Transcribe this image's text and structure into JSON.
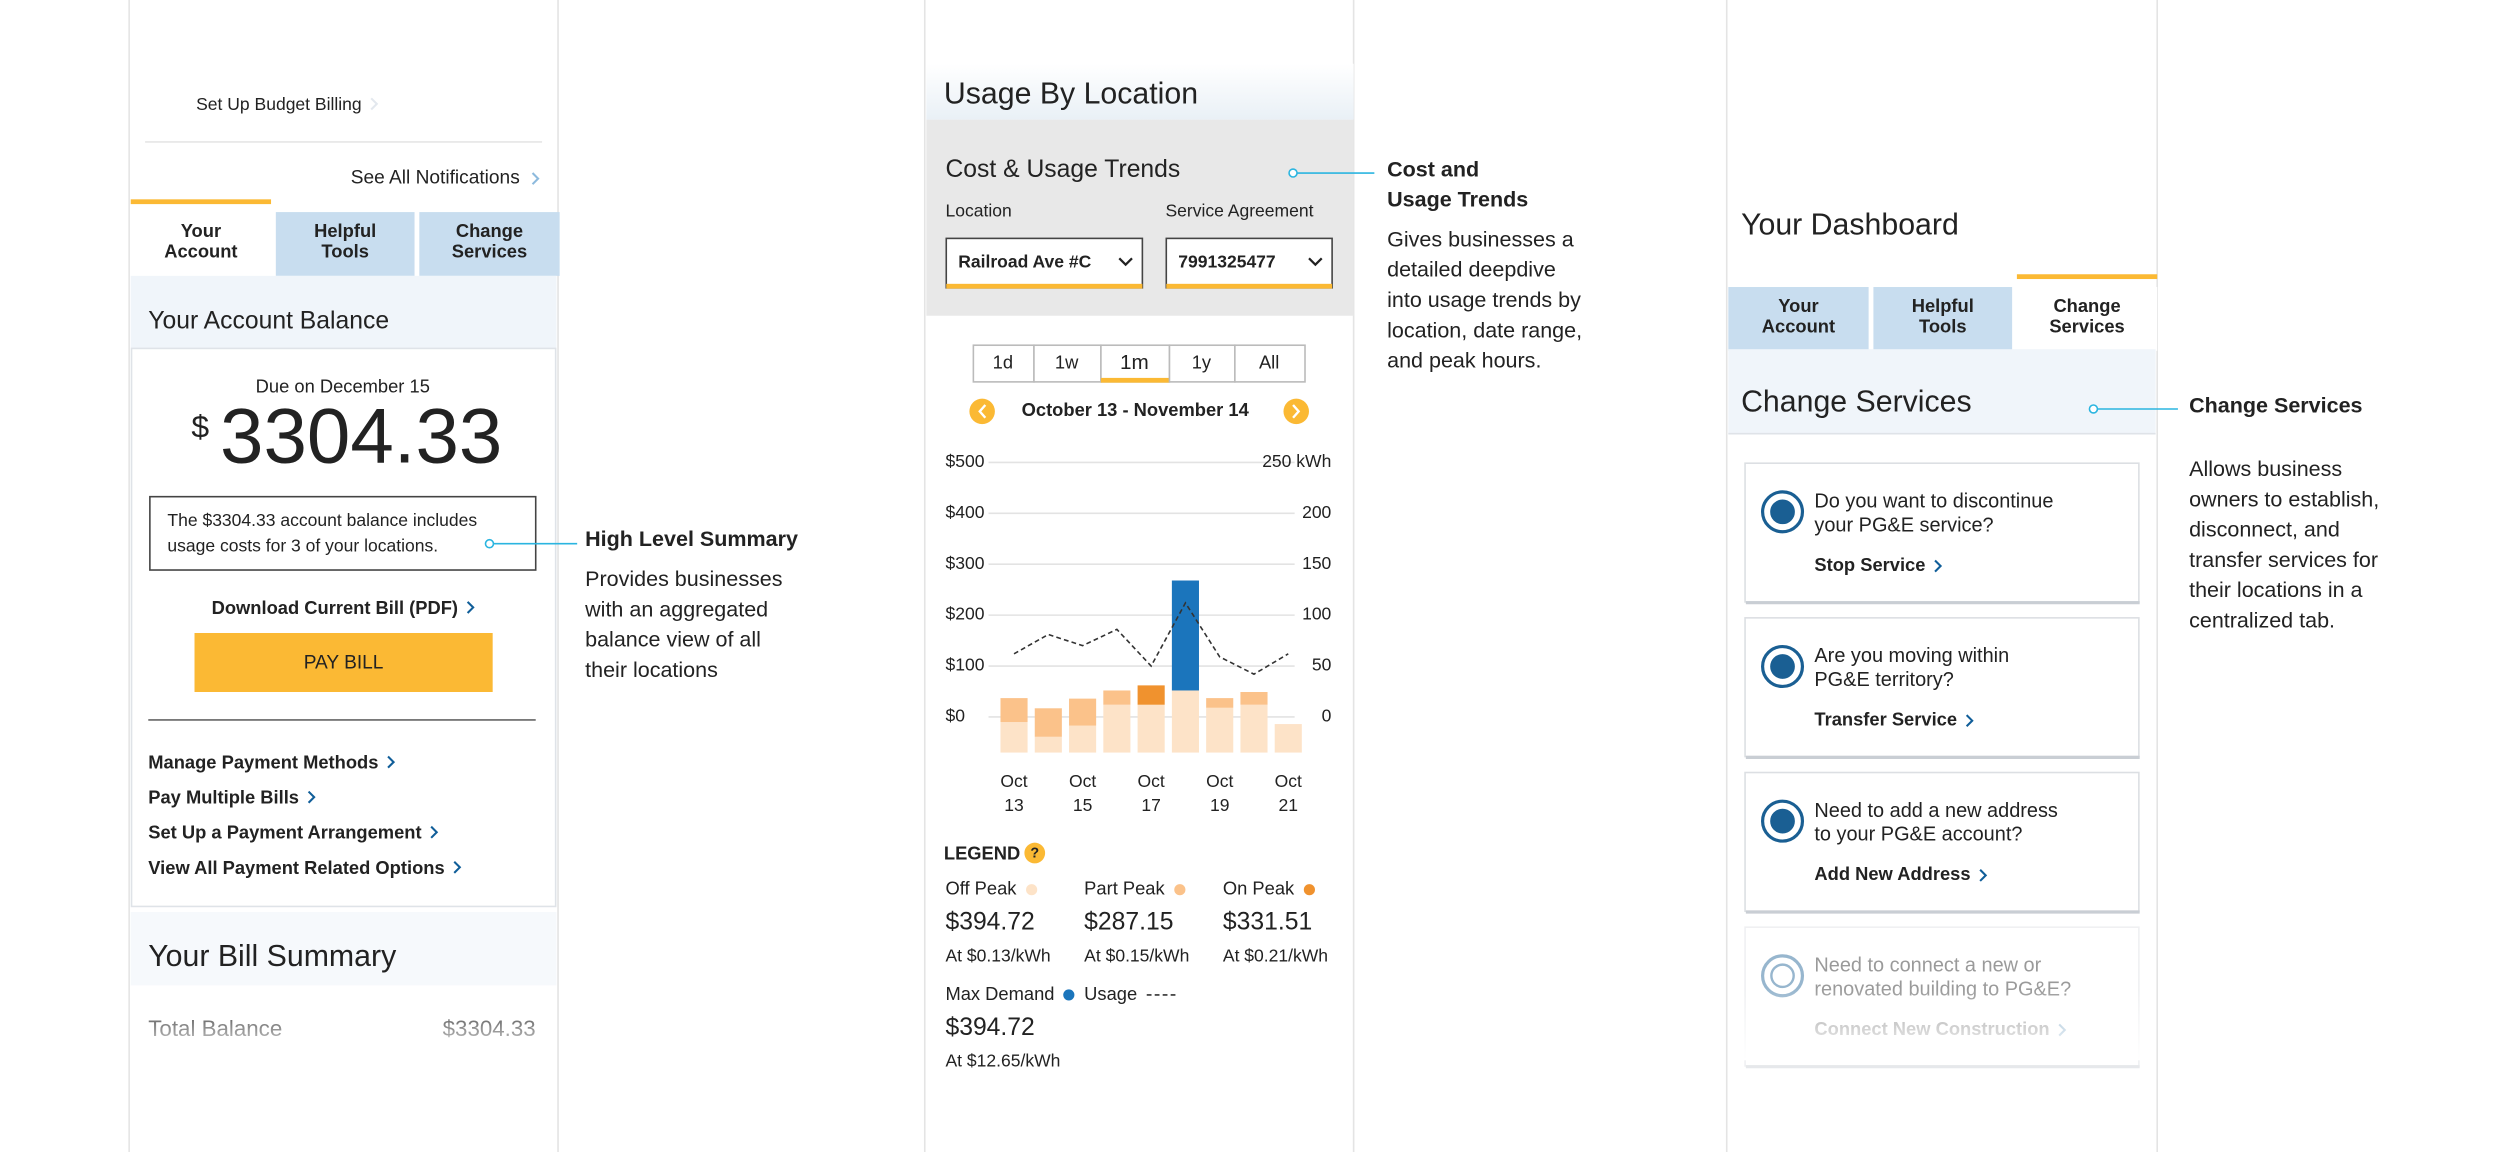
{
  "dashboard_panel": {
    "budget_link": "Set Up Budget Billing",
    "notifications_link": "See All Notifications",
    "tabs": [
      "Your Account",
      "Helpful Tools",
      "Change Services"
    ],
    "balance_title": "Your Account Balance",
    "due_date": "Due on December 15",
    "currency_symbol": "$",
    "balance": "3304.33",
    "summary_note": [
      "The $3304.33 account balance includes",
      "usage costs for 3 of your locations."
    ],
    "download_link": "Download Current Bill (PDF)",
    "pay_button": "PAY BILL",
    "payment_links": [
      "Manage Payment Methods",
      "Pay Multiple Bills",
      "Set Up a Payment Arrangement",
      "View All Payment Related Options"
    ],
    "bill_summary_title": "Your Bill Summary",
    "total_label": "Total Balance",
    "total_value": "$3304.33"
  },
  "usage_panel": {
    "title": "Usage By Location",
    "card_title": "Cost & Usage Trends",
    "location_label": "Location",
    "location_value": "Railroad Ave #C",
    "agreement_label": "Service Agreement",
    "agreement_value": "7991325477",
    "ranges": [
      "1d",
      "1w",
      "1m",
      "1y",
      "All"
    ],
    "date_range": "October 13 - November 14",
    "legend_title": "LEGEND",
    "legend_amounts": [
      "$394.72",
      "$287.15",
      "$331.51",
      "$394.72"
    ],
    "legend_rates": [
      "At $0.13/kWh",
      "At $0.15/kWh",
      "At $0.21/kWh",
      "At $12.65/kWh"
    ]
  },
  "chart_data": {
    "type": "bar",
    "categories": [
      "Oct 13",
      null,
      "Oct 15",
      null,
      "Oct 17",
      null,
      "Oct 19",
      null,
      "Oct 21"
    ],
    "series": [
      {
        "name": "Off Peak",
        "color": "#fde3c8",
        "values": [
          60,
          31,
          53,
          94,
          94,
          122,
          88,
          94,
          56
        ]
      },
      {
        "name": "Part Peak",
        "color": "#fbc28a",
        "values": [
          47,
          56,
          53,
          28,
          0,
          0,
          19,
          25,
          0
        ]
      },
      {
        "name": "On Peak",
        "color": "#f0922e",
        "values": [
          0,
          0,
          0,
          0,
          38,
          0,
          0,
          0,
          0
        ]
      },
      {
        "name": "Max Demand",
        "color": "#1b75bc",
        "values": [
          0,
          0,
          0,
          0,
          0,
          216,
          0,
          0,
          0
        ]
      },
      {
        "name": "Usage",
        "type": "line",
        "axis": "y2",
        "color": "#333333",
        "values": [
          62,
          81,
          70,
          86,
          50,
          112,
          59,
          42,
          62
        ]
      }
    ],
    "ylim": [
      -70,
      500
    ],
    "yticks": [
      {
        "value": 0,
        "label": "$0"
      },
      {
        "value": 100,
        "label": "$100"
      },
      {
        "value": 200,
        "label": "$200"
      },
      {
        "value": 300,
        "label": "$300"
      },
      {
        "value": 400,
        "label": "$400"
      },
      {
        "value": 500,
        "label": "$500"
      }
    ],
    "y2lim": [
      -35,
      250
    ],
    "y2ticks": [
      0,
      50,
      100,
      150,
      200,
      {
        "value": 250,
        "label": "250 kWh"
      }
    ],
    "grid": true
  },
  "change_panel": {
    "title": "Your Dashboard",
    "tabs": [
      "Your Account",
      "Helpful Tools",
      "Change Services"
    ],
    "section_title": "Change Services",
    "cards": [
      {
        "question": [
          "Do you want to discontinue",
          "your PG&E service?"
        ],
        "link": "Stop Service"
      },
      {
        "question": [
          "Are you moving within",
          "PG&E territory?"
        ],
        "link": "Transfer Service"
      },
      {
        "question": [
          "Need to add a new address",
          "to your PG&E account?"
        ],
        "link": "Add New Address"
      },
      {
        "question": [
          "Need to connect a new or",
          "renovated building to PG&E?"
        ],
        "link": "Connect New Construction"
      }
    ]
  },
  "annotations": [
    {
      "title": [
        "High Level Summary"
      ],
      "body": [
        "Provides businesses",
        "with an aggregated",
        "balance view of all",
        "their locations"
      ]
    },
    {
      "title": [
        "Cost and",
        "Usage Trends"
      ],
      "body": [
        "Gives businesses a",
        "detailed deepdive",
        "into usage trends by",
        "location, date range,",
        "and peak hours."
      ]
    },
    {
      "title": [
        "Change Services"
      ],
      "body": [
        "Allows business",
        "owners to establish,",
        "disconnect, and",
        "transfer services for",
        "their locations in a",
        "centralized tab."
      ]
    }
  ]
}
